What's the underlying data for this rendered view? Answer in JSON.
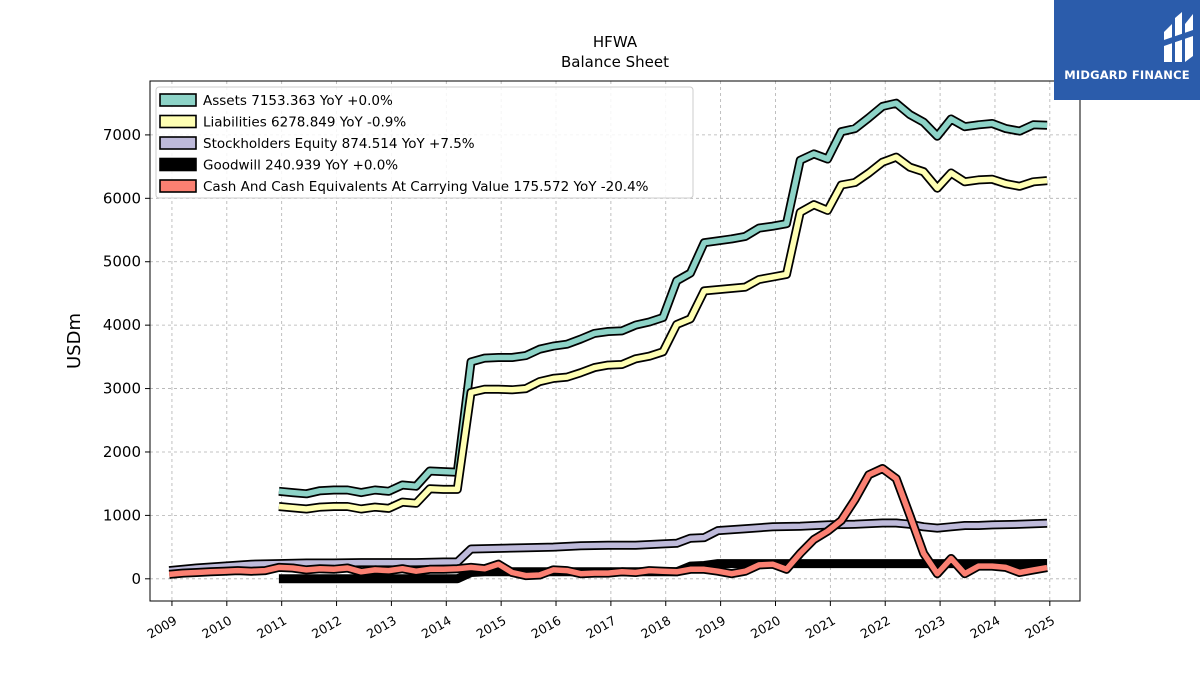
{
  "chart_data": {
    "type": "line",
    "title": "HFWA",
    "subtitle": "Balance  Sheet",
    "ylabel": "USDm",
    "xlabel": "",
    "xlim": [
      2008.6,
      2025.55
    ],
    "ylim": [
      -350,
      7850
    ],
    "yticks": [
      0,
      1000,
      2000,
      3000,
      4000,
      5000,
      6000,
      7000
    ],
    "xticks": [
      2009,
      2010,
      2011,
      2012,
      2013,
      2014,
      2015,
      2016,
      2017,
      2018,
      2019,
      2020,
      2021,
      2022,
      2023,
      2024,
      2025
    ],
    "grid": true,
    "legend_position": "top-left",
    "series": [
      {
        "name": "Assets  7153.363 YoY +0.0%",
        "color": "#8dd3c7",
        "x": [
          2010.95,
          2011.2,
          2011.45,
          2011.7,
          2011.95,
          2012.2,
          2012.45,
          2012.7,
          2012.95,
          2013.2,
          2013.45,
          2013.7,
          2013.95,
          2014.2,
          2014.45,
          2014.7,
          2014.95,
          2015.2,
          2015.45,
          2015.7,
          2015.95,
          2016.2,
          2016.45,
          2016.7,
          2016.95,
          2017.2,
          2017.45,
          2017.7,
          2017.95,
          2018.2,
          2018.45,
          2018.7,
          2018.95,
          2019.2,
          2019.45,
          2019.7,
          2019.95,
          2020.2,
          2020.45,
          2020.7,
          2020.95,
          2021.2,
          2021.45,
          2021.7,
          2021.95,
          2022.2,
          2022.45,
          2022.7,
          2022.95,
          2023.2,
          2023.45,
          2023.7,
          2023.95,
          2024.2,
          2024.45,
          2024.7,
          2024.95
        ],
        "y": [
          1380,
          1360,
          1340,
          1390,
          1400,
          1400,
          1360,
          1400,
          1380,
          1480,
          1460,
          1700,
          1690,
          1680,
          3420,
          3480,
          3490,
          3490,
          3520,
          3620,
          3670,
          3700,
          3780,
          3870,
          3900,
          3910,
          4000,
          4050,
          4120,
          4700,
          4820,
          5300,
          5330,
          5360,
          5400,
          5530,
          5560,
          5600,
          6600,
          6700,
          6620,
          7050,
          7100,
          7270,
          7450,
          7500,
          7320,
          7200,
          6980,
          7250,
          7130,
          7160,
          7180,
          7100,
          7060,
          7160,
          7153
        ]
      },
      {
        "name": "Liabilities  6278.849 YoY -0.9%",
        "color": "#ffffb3",
        "x": [
          2010.95,
          2011.2,
          2011.45,
          2011.7,
          2011.95,
          2012.2,
          2012.45,
          2012.7,
          2012.95,
          2013.2,
          2013.45,
          2013.7,
          2013.95,
          2014.2,
          2014.45,
          2014.7,
          2014.95,
          2015.2,
          2015.45,
          2015.7,
          2015.95,
          2016.2,
          2016.45,
          2016.7,
          2016.95,
          2017.2,
          2017.45,
          2017.7,
          2017.95,
          2018.2,
          2018.45,
          2018.7,
          2018.95,
          2019.2,
          2019.45,
          2019.7,
          2019.95,
          2020.2,
          2020.45,
          2020.7,
          2020.95,
          2021.2,
          2021.45,
          2021.7,
          2021.95,
          2022.2,
          2022.45,
          2022.7,
          2022.95,
          2023.2,
          2023.45,
          2023.7,
          2023.95,
          2024.2,
          2024.45,
          2024.7,
          2024.95
        ],
        "y": [
          1140,
          1120,
          1100,
          1130,
          1140,
          1140,
          1100,
          1130,
          1110,
          1210,
          1190,
          1420,
          1410,
          1410,
          2940,
          2990,
          2990,
          2980,
          3000,
          3110,
          3160,
          3180,
          3250,
          3330,
          3370,
          3380,
          3470,
          3510,
          3580,
          4010,
          4100,
          4540,
          4560,
          4580,
          4600,
          4720,
          4760,
          4800,
          5780,
          5900,
          5810,
          6210,
          6250,
          6400,
          6570,
          6650,
          6490,
          6420,
          6160,
          6400,
          6260,
          6290,
          6300,
          6230,
          6190,
          6260,
          6279
        ]
      },
      {
        "name": "Stockholders Equity  874.514 YoY +7.5%",
        "color": "#bebada",
        "x": [
          2008.95,
          2009.45,
          2009.95,
          2010.45,
          2010.95,
          2011.45,
          2011.95,
          2012.45,
          2012.95,
          2013.45,
          2013.95,
          2014.2,
          2014.45,
          2014.95,
          2015.45,
          2015.95,
          2016.45,
          2016.95,
          2017.45,
          2017.95,
          2018.2,
          2018.45,
          2018.7,
          2018.95,
          2019.45,
          2019.95,
          2020.45,
          2020.95,
          2021.45,
          2021.95,
          2022.2,
          2022.45,
          2022.7,
          2022.95,
          2023.2,
          2023.45,
          2023.7,
          2023.95,
          2024.45,
          2024.95
        ],
        "y": [
          130,
          170,
          200,
          230,
          240,
          250,
          250,
          255,
          255,
          255,
          265,
          265,
          470,
          480,
          490,
          500,
          520,
          530,
          530,
          550,
          560,
          640,
          650,
          760,
          790,
          820,
          830,
          850,
          860,
          880,
          880,
          860,
          820,
          800,
          820,
          840,
          840,
          850,
          860,
          875
        ]
      },
      {
        "name": "Goodwill  240.939 YoY +0.0%",
        "color": "#000000",
        "x": [
          2010.95,
          2011.45,
          2011.95,
          2012.45,
          2012.95,
          2013.45,
          2013.95,
          2014.2,
          2014.45,
          2014.7,
          2014.95,
          2015.45,
          2015.95,
          2016.45,
          2016.95,
          2017.45,
          2017.95,
          2018.2,
          2018.45,
          2018.7,
          2018.95,
          2019.45,
          2019.95,
          2020.45,
          2020.95,
          2021.45,
          2021.95,
          2022.45,
          2022.95,
          2023.45,
          2023.95,
          2024.45,
          2024.95
        ],
        "y": [
          0,
          0,
          0,
          0,
          0,
          0,
          0,
          0,
          100,
          110,
          110,
          110,
          110,
          110,
          110,
          110,
          110,
          110,
          200,
          210,
          240,
          240,
          240,
          240,
          240,
          240,
          240,
          240,
          240,
          240,
          240,
          240,
          241
        ]
      },
      {
        "name": "Cash And Cash Equivalents At Carrying Value  175.572 YoY -20.4%",
        "color": "#fb8072",
        "x": [
          2008.95,
          2009.2,
          2009.45,
          2009.7,
          2009.95,
          2010.2,
          2010.45,
          2010.7,
          2010.95,
          2011.2,
          2011.45,
          2011.7,
          2011.95,
          2012.2,
          2012.45,
          2012.7,
          2012.95,
          2013.2,
          2013.45,
          2013.7,
          2013.95,
          2014.2,
          2014.45,
          2014.7,
          2014.95,
          2015.2,
          2015.45,
          2015.7,
          2015.95,
          2016.2,
          2016.45,
          2016.7,
          2016.95,
          2017.2,
          2017.45,
          2017.7,
          2017.95,
          2018.2,
          2018.45,
          2018.7,
          2018.95,
          2019.2,
          2019.45,
          2019.7,
          2019.95,
          2020.2,
          2020.45,
          2020.7,
          2020.95,
          2021.2,
          2021.45,
          2021.7,
          2021.95,
          2022.2,
          2022.45,
          2022.7,
          2022.95,
          2023.2,
          2023.45,
          2023.7,
          2023.95,
          2024.2,
          2024.45,
          2024.7,
          2024.95
        ],
        "y": [
          70,
          90,
          100,
          110,
          120,
          130,
          120,
          130,
          180,
          170,
          140,
          160,
          150,
          170,
          110,
          140,
          130,
          160,
          120,
          150,
          150,
          160,
          180,
          160,
          230,
          100,
          50,
          60,
          140,
          130,
          80,
          90,
          90,
          110,
          100,
          130,
          120,
          110,
          150,
          150,
          120,
          80,
          120,
          220,
          230,
          150,
          400,
          620,
          750,
          920,
          1250,
          1640,
          1740,
          1580,
          1000,
          400,
          80,
          320,
          80,
          200,
          200,
          180,
          100,
          140,
          176
        ]
      }
    ]
  },
  "brand": {
    "name": "MIDGARD FINANCE",
    "background": "#2b5cab",
    "icon": "midgard-logo-icon"
  }
}
